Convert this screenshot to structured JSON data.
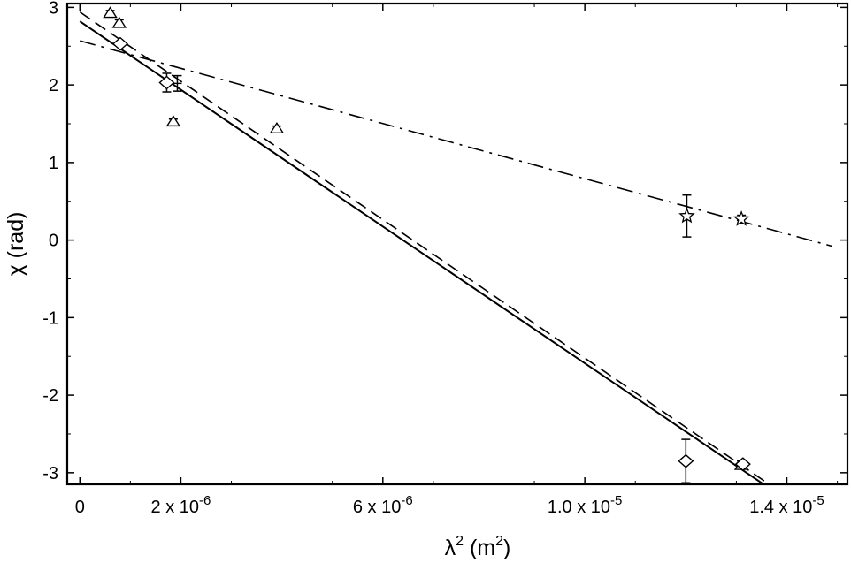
{
  "chart_data": {
    "type": "scatter",
    "title": "",
    "xlabel": "λ",
    "xlabel_sup": "2",
    "xlabel_unit_pre": " (m",
    "xlabel_unit_sup": "2",
    "xlabel_unit_post": ")",
    "ylabel": "χ (rad)",
    "xlim": [
      -2.5e-07,
      1.52e-05
    ],
    "ylim": [
      -3.15,
      3.05
    ],
    "yticks": [
      {
        "value": 3,
        "label": "3"
      },
      {
        "value": 2,
        "label": "2"
      },
      {
        "value": 1,
        "label": "1"
      },
      {
        "value": 0,
        "label": "0"
      },
      {
        "value": -1,
        "label": "-1"
      },
      {
        "value": -2,
        "label": "-2"
      },
      {
        "value": -3,
        "label": "-3"
      }
    ],
    "xticks": [
      {
        "value": 0,
        "label": "0"
      },
      {
        "value": 2e-06,
        "base": "2 x 10",
        "exp": "-6"
      },
      {
        "value": 6e-06,
        "base": "6 x 10",
        "exp": "-6"
      },
      {
        "value": 1e-05,
        "base": "1.0 x 10",
        "exp": "-5"
      },
      {
        "value": 1.4e-05,
        "base": "1.4 x 10",
        "exp": "-5"
      }
    ],
    "grid": false,
    "series": [
      {
        "marker": "triangle",
        "points": [
          {
            "x": 6e-07,
            "y": 2.93,
            "err": 0.03
          },
          {
            "x": 7.8e-07,
            "y": 2.8,
            "err": 0.04
          },
          {
            "x": 1.85e-06,
            "y": 1.53,
            "err": 0.03
          },
          {
            "x": 3.9e-06,
            "y": 1.44,
            "err": 0.03
          },
          {
            "x": 1.31e-05,
            "y": -2.9,
            "err": 0.05
          }
        ]
      },
      {
        "marker": "diamond",
        "points": [
          {
            "x": 8e-07,
            "y": 2.53,
            "err": 0.02
          },
          {
            "x": 1.72e-06,
            "y": 2.03,
            "err": 0.12
          },
          {
            "x": 1.2e-05,
            "y": -2.85,
            "err": 0.28
          },
          {
            "x": 1.313e-05,
            "y": -2.89,
            "err": 0.03
          }
        ]
      },
      {
        "marker": "cross",
        "points": [
          {
            "x": 1.93e-06,
            "y": 2.02,
            "err": 0.1
          }
        ]
      },
      {
        "marker": "star",
        "points": [
          {
            "x": 1.202e-05,
            "y": 0.31,
            "err": 0.27
          },
          {
            "x": 1.31e-05,
            "y": 0.27,
            "err": 0.05
          }
        ]
      }
    ],
    "lines": [
      {
        "style": "solid",
        "x0": 0,
        "y0": 2.82,
        "x1": 1.354e-05,
        "y1": -3.15
      },
      {
        "style": "dashed",
        "x0": 0,
        "y0": 2.94,
        "x1": 1.365e-05,
        "y1": -3.15
      },
      {
        "style": "dashdot",
        "x0": 0,
        "y0": 2.57,
        "x1": 1.49e-05,
        "y1": -0.08
      }
    ]
  }
}
